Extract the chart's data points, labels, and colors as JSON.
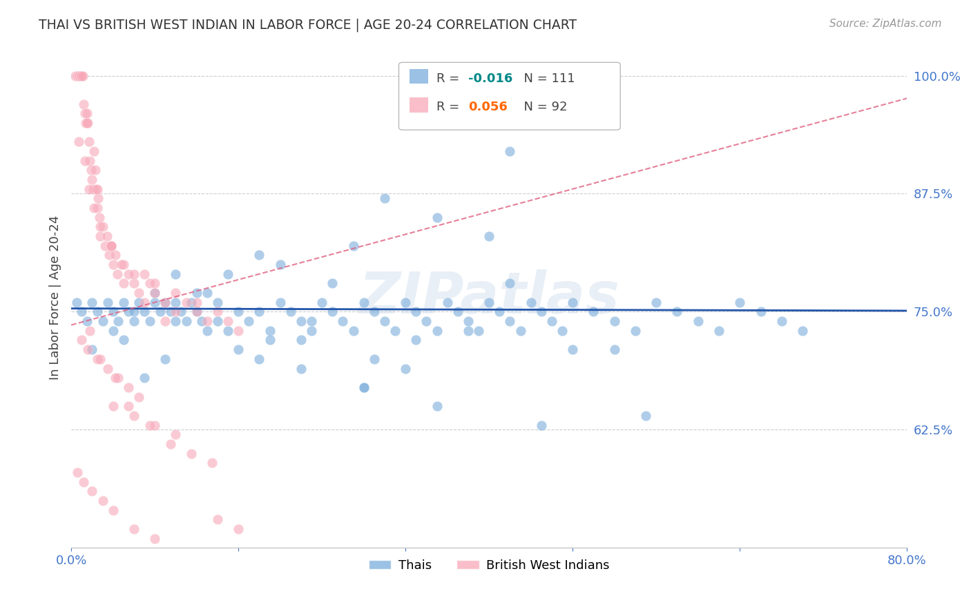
{
  "title": "THAI VS BRITISH WEST INDIAN IN LABOR FORCE | AGE 20-24 CORRELATION CHART",
  "source": "Source: ZipAtlas.com",
  "ylabel": "In Labor Force | Age 20-24",
  "xlim": [
    0.0,
    0.8
  ],
  "ylim": [
    0.5,
    1.03
  ],
  "yticks": [
    0.625,
    0.75,
    0.875,
    1.0
  ],
  "ytick_labels": [
    "62.5%",
    "75.0%",
    "87.5%",
    "100.0%"
  ],
  "xticks": [
    0.0,
    0.16,
    0.32,
    0.48,
    0.64,
    0.8
  ],
  "xtick_labels": [
    "0.0%",
    "",
    "",
    "",
    "",
    "80.0%"
  ],
  "thai_R": "-0.016",
  "thai_N": "111",
  "bwi_R": "0.056",
  "bwi_N": "92",
  "thai_color": "#7aaddb",
  "bwi_color": "#f7a8b8",
  "thai_line_color": "#2255aa",
  "bwi_line_color": "#e06080",
  "watermark": "ZIPatlas",
  "background_color": "#ffffff",
  "grid_color": "#cccccc",
  "axis_color": "#bbbbbb",
  "label_color": "#4477cc",
  "thai_scatter_x": [
    0.005,
    0.01,
    0.015,
    0.02,
    0.025,
    0.03,
    0.035,
    0.04,
    0.045,
    0.05,
    0.055,
    0.06,
    0.065,
    0.07,
    0.075,
    0.08,
    0.085,
    0.09,
    0.095,
    0.1,
    0.105,
    0.11,
    0.115,
    0.12,
    0.125,
    0.13,
    0.14,
    0.15,
    0.16,
    0.17,
    0.18,
    0.19,
    0.2,
    0.21,
    0.22,
    0.23,
    0.24,
    0.25,
    0.26,
    0.27,
    0.28,
    0.29,
    0.3,
    0.31,
    0.32,
    0.33,
    0.34,
    0.35,
    0.36,
    0.37,
    0.38,
    0.39,
    0.4,
    0.41,
    0.42,
    0.43,
    0.44,
    0.45,
    0.46,
    0.47,
    0.48,
    0.5,
    0.52,
    0.54,
    0.56,
    0.58,
    0.6,
    0.62,
    0.64,
    0.66,
    0.68,
    0.7,
    0.42,
    0.27,
    0.3,
    0.35,
    0.4,
    0.2,
    0.25,
    0.18,
    0.15,
    0.12,
    0.1,
    0.08,
    0.06,
    0.04,
    0.02,
    0.05,
    0.09,
    0.16,
    0.22,
    0.28,
    0.35,
    0.45,
    0.55,
    0.42,
    0.38,
    0.52,
    0.32,
    0.28,
    0.22,
    0.18,
    0.14,
    0.1,
    0.07,
    0.13,
    0.19,
    0.23,
    0.29,
    0.33,
    0.48
  ],
  "thai_scatter_y": [
    0.76,
    0.75,
    0.74,
    0.76,
    0.75,
    0.74,
    0.76,
    0.75,
    0.74,
    0.76,
    0.75,
    0.74,
    0.76,
    0.75,
    0.74,
    0.76,
    0.75,
    0.76,
    0.75,
    0.76,
    0.75,
    0.74,
    0.76,
    0.75,
    0.74,
    0.73,
    0.74,
    0.73,
    0.75,
    0.74,
    0.75,
    0.73,
    0.76,
    0.75,
    0.74,
    0.73,
    0.76,
    0.75,
    0.74,
    0.73,
    0.76,
    0.75,
    0.74,
    0.73,
    0.76,
    0.75,
    0.74,
    0.73,
    0.76,
    0.75,
    0.74,
    0.73,
    0.76,
    0.75,
    0.74,
    0.73,
    0.76,
    0.75,
    0.74,
    0.73,
    0.76,
    0.75,
    0.74,
    0.73,
    0.76,
    0.75,
    0.74,
    0.73,
    0.76,
    0.75,
    0.74,
    0.73,
    0.92,
    0.82,
    0.87,
    0.85,
    0.83,
    0.8,
    0.78,
    0.81,
    0.79,
    0.77,
    0.79,
    0.77,
    0.75,
    0.73,
    0.71,
    0.72,
    0.7,
    0.71,
    0.69,
    0.67,
    0.65,
    0.63,
    0.64,
    0.78,
    0.73,
    0.71,
    0.69,
    0.67,
    0.72,
    0.7,
    0.76,
    0.74,
    0.68,
    0.77,
    0.72,
    0.74,
    0.7,
    0.72,
    0.71
  ],
  "bwi_scatter_x": [
    0.004,
    0.006,
    0.007,
    0.008,
    0.009,
    0.01,
    0.011,
    0.012,
    0.013,
    0.014,
    0.015,
    0.016,
    0.017,
    0.018,
    0.019,
    0.02,
    0.021,
    0.022,
    0.023,
    0.024,
    0.025,
    0.026,
    0.027,
    0.028,
    0.03,
    0.032,
    0.034,
    0.036,
    0.038,
    0.04,
    0.042,
    0.044,
    0.05,
    0.055,
    0.06,
    0.065,
    0.07,
    0.075,
    0.08,
    0.09,
    0.1,
    0.11,
    0.12,
    0.13,
    0.14,
    0.15,
    0.16,
    0.007,
    0.013,
    0.017,
    0.022,
    0.028,
    0.038,
    0.048,
    0.06,
    0.08,
    0.1,
    0.12,
    0.006,
    0.012,
    0.02,
    0.03,
    0.04,
    0.06,
    0.08,
    0.01,
    0.016,
    0.025,
    0.035,
    0.045,
    0.055,
    0.065,
    0.015,
    0.025,
    0.038,
    0.05,
    0.07,
    0.09,
    0.04,
    0.06,
    0.08,
    0.1,
    0.14,
    0.16,
    0.018,
    0.028,
    0.042,
    0.055,
    0.075,
    0.095,
    0.115,
    0.135
  ],
  "bwi_scatter_y": [
    1.0,
    1.0,
    1.0,
    1.0,
    1.0,
    1.0,
    1.0,
    0.97,
    0.96,
    0.95,
    0.96,
    0.95,
    0.93,
    0.91,
    0.9,
    0.89,
    0.88,
    0.92,
    0.9,
    0.88,
    0.86,
    0.87,
    0.85,
    0.83,
    0.84,
    0.82,
    0.83,
    0.81,
    0.82,
    0.8,
    0.81,
    0.79,
    0.8,
    0.79,
    0.78,
    0.77,
    0.79,
    0.78,
    0.77,
    0.76,
    0.75,
    0.76,
    0.75,
    0.74,
    0.75,
    0.74,
    0.73,
    0.93,
    0.91,
    0.88,
    0.86,
    0.84,
    0.82,
    0.8,
    0.79,
    0.78,
    0.77,
    0.76,
    0.58,
    0.57,
    0.56,
    0.55,
    0.54,
    0.52,
    0.51,
    0.72,
    0.71,
    0.7,
    0.69,
    0.68,
    0.67,
    0.66,
    0.95,
    0.88,
    0.82,
    0.78,
    0.76,
    0.74,
    0.65,
    0.64,
    0.63,
    0.62,
    0.53,
    0.52,
    0.73,
    0.7,
    0.68,
    0.65,
    0.63,
    0.61,
    0.6,
    0.59
  ]
}
